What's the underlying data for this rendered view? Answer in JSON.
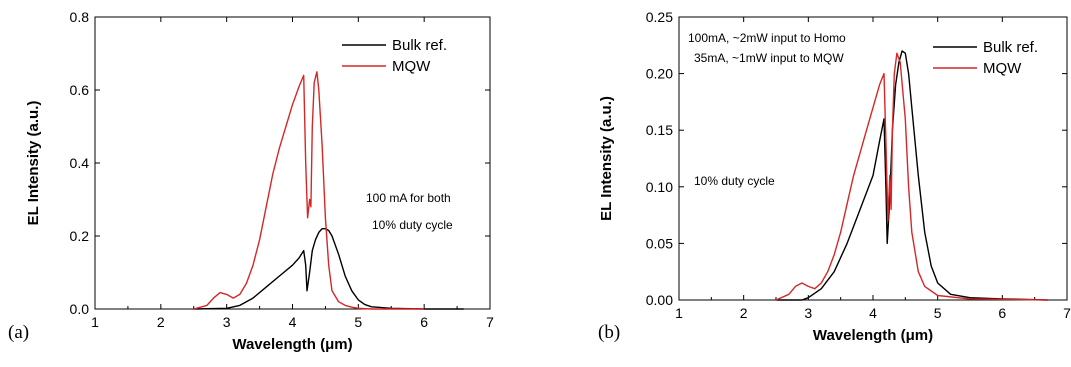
{
  "chart_data": [
    {
      "type": "line",
      "panel_label": "(a)",
      "xlabel": "Wavelength (μm)",
      "ylabel": "EL Intensity (a.u.)",
      "xlim": [
        1,
        7
      ],
      "ylim": [
        0,
        0.8
      ],
      "xticks": [
        "1",
        "2",
        "3",
        "4",
        "5",
        "6",
        "7"
      ],
      "yticks": [
        "0.0",
        "0.2",
        "0.4",
        "0.6",
        "0.8"
      ],
      "legend_position": "top-right",
      "annotations": [
        "100 mA for both",
        "10% duty cycle"
      ],
      "series": [
        {
          "name": "Bulk ref.",
          "color": "#000000",
          "x": [
            2.5,
            3.0,
            3.2,
            3.4,
            3.6,
            3.8,
            4.0,
            4.1,
            4.17,
            4.2,
            4.22,
            4.26,
            4.3,
            4.35,
            4.4,
            4.45,
            4.5,
            4.55,
            4.6,
            4.7,
            4.8,
            4.9,
            5.0,
            5.1,
            5.2,
            5.5,
            6.0,
            6.6
          ],
          "values": [
            0.0,
            0.002,
            0.01,
            0.03,
            0.06,
            0.09,
            0.12,
            0.14,
            0.16,
            0.12,
            0.05,
            0.1,
            0.16,
            0.19,
            0.21,
            0.22,
            0.22,
            0.215,
            0.2,
            0.15,
            0.09,
            0.05,
            0.025,
            0.012,
            0.006,
            0.002,
            0.0,
            0.0
          ]
        },
        {
          "name": "MQW",
          "color": "#d62728",
          "x": [
            2.5,
            2.7,
            2.8,
            2.9,
            3.0,
            3.1,
            3.2,
            3.3,
            3.4,
            3.5,
            3.6,
            3.7,
            3.8,
            3.9,
            4.0,
            4.1,
            4.17,
            4.2,
            4.23,
            4.26,
            4.28,
            4.3,
            4.33,
            4.37,
            4.4,
            4.45,
            4.5,
            4.55,
            4.6,
            4.7,
            4.8,
            4.9,
            5.0,
            5.2,
            6.0
          ],
          "values": [
            0.0,
            0.01,
            0.03,
            0.045,
            0.04,
            0.03,
            0.04,
            0.07,
            0.12,
            0.19,
            0.28,
            0.37,
            0.44,
            0.5,
            0.56,
            0.61,
            0.64,
            0.4,
            0.25,
            0.3,
            0.28,
            0.5,
            0.62,
            0.65,
            0.6,
            0.45,
            0.25,
            0.12,
            0.05,
            0.02,
            0.01,
            0.005,
            0.002,
            0.0,
            0.0
          ]
        }
      ]
    },
    {
      "type": "line",
      "panel_label": "(b)",
      "xlabel": "Wavelength (μm)",
      "ylabel": "EL Intensity (a.u.)",
      "xlim": [
        1,
        7
      ],
      "ylim": [
        0,
        0.25
      ],
      "xticks": [
        "1",
        "2",
        "3",
        "4",
        "5",
        "6",
        "7"
      ],
      "yticks": [
        "0.00",
        "0.05",
        "0.10",
        "0.15",
        "0.20",
        "0.25"
      ],
      "legend_position": "top-right",
      "annotations": [
        "100mA, ~2mW input to Homo",
        "35mA, ~1mW input to MQW",
        "10% duty cycle"
      ],
      "series": [
        {
          "name": "Bulk ref.",
          "color": "#000000",
          "x": [
            2.5,
            2.9,
            3.0,
            3.2,
            3.4,
            3.6,
            3.8,
            4.0,
            4.1,
            4.17,
            4.2,
            4.22,
            4.26,
            4.3,
            4.35,
            4.4,
            4.45,
            4.5,
            4.55,
            4.6,
            4.7,
            4.8,
            4.9,
            5.0,
            5.2,
            5.5,
            6.0,
            6.7
          ],
          "values": [
            0.0,
            0.0,
            0.002,
            0.01,
            0.025,
            0.05,
            0.08,
            0.11,
            0.14,
            0.16,
            0.1,
            0.05,
            0.09,
            0.15,
            0.19,
            0.21,
            0.22,
            0.218,
            0.2,
            0.17,
            0.11,
            0.06,
            0.03,
            0.015,
            0.005,
            0.002,
            0.001,
            0.0
          ]
        },
        {
          "name": "MQW",
          "color": "#d62728",
          "x": [
            2.5,
            2.7,
            2.8,
            2.9,
            3.0,
            3.1,
            3.2,
            3.3,
            3.4,
            3.5,
            3.6,
            3.7,
            3.8,
            3.9,
            4.0,
            4.1,
            4.17,
            4.2,
            4.23,
            4.26,
            4.28,
            4.3,
            4.33,
            4.37,
            4.42,
            4.5,
            4.55,
            4.6,
            4.7,
            4.8,
            5.0,
            5.5,
            6.7
          ],
          "values": [
            0.0,
            0.005,
            0.012,
            0.015,
            0.012,
            0.01,
            0.015,
            0.025,
            0.04,
            0.06,
            0.085,
            0.11,
            0.13,
            0.15,
            0.17,
            0.19,
            0.2,
            0.14,
            0.07,
            0.11,
            0.08,
            0.15,
            0.2,
            0.218,
            0.21,
            0.16,
            0.1,
            0.06,
            0.025,
            0.012,
            0.004,
            0.001,
            0.0
          ]
        }
      ]
    }
  ]
}
